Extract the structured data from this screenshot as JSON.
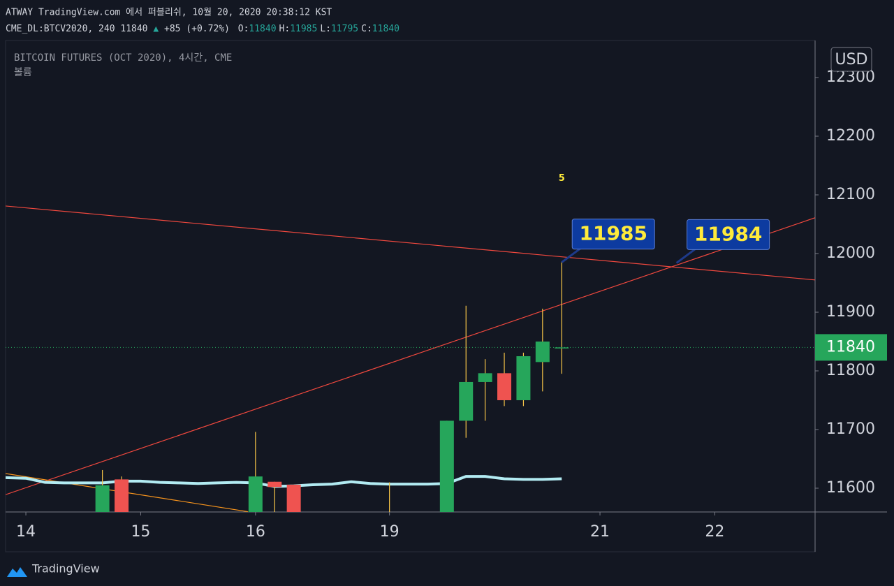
{
  "header": {
    "published": "ATWAY TradingView.com 에서 퍼블리쉬, 10월 20, 2020 20:38:12 KST",
    "symbol": "CME_DL:BTCV2020, 240",
    "last": "11840",
    "change": "+85 (+0.72%)",
    "ohlc": [
      {
        "label": "O:",
        "value": "11840"
      },
      {
        "label": "H:",
        "value": "11985"
      },
      {
        "label": "L:",
        "value": "11795"
      },
      {
        "label": "C:",
        "value": "11840"
      }
    ]
  },
  "chart_data": {
    "type": "candlestick",
    "title": "BITCOIN FUTURES (OCT 2020), 4시간, CME",
    "subtitle": "볼륨",
    "currency": "USD",
    "x": [
      4,
      5,
      12,
      13,
      14,
      19,
      22,
      23,
      24,
      25,
      26,
      27,
      28
    ],
    "open": [
      11550,
      11615,
      11550,
      11611,
      11606,
      11555,
      11550,
      11715,
      11781,
      11796,
      11750,
      11815,
      11840
    ],
    "high": [
      11631,
      11620,
      11696,
      11611,
      11606,
      11610,
      11715,
      11911,
      11820,
      11831,
      11831,
      11906,
      11985
    ],
    "low": [
      11540,
      11540,
      11540,
      11550,
      11540,
      11540,
      11540,
      11686,
      11715,
      11740,
      11740,
      11765,
      11795
    ],
    "close": [
      11605,
      11545,
      11620,
      11602,
      11540,
      11550,
      11715,
      11781,
      11796,
      11750,
      11825,
      11850,
      11840
    ],
    "up_color": "#26a65b",
    "down_color": "#ef5350",
    "wick_color": "#f7c548",
    "overlay": {
      "color": "#b2ebf2",
      "x": [
        -1.06,
        0,
        1,
        2,
        3,
        4,
        5,
        6,
        7,
        8,
        9,
        10,
        11,
        12,
        13,
        14,
        15,
        16,
        17,
        18,
        19,
        20,
        21,
        22,
        23,
        24,
        25,
        26,
        27,
        28
      ],
      "values": [
        11618,
        11617,
        11610,
        11609,
        11609,
        11609,
        11612,
        11612,
        11610,
        11609,
        11608,
        11609,
        11610,
        11609,
        11603,
        11604,
        11606,
        11607,
        11611,
        11608,
        11607,
        11607,
        11607,
        11608,
        11620,
        11620,
        11616,
        11615,
        11615,
        11616
      ]
    },
    "trendlines": [
      {
        "color": "#f0483e",
        "x": [
          -1.06,
          41.24
        ],
        "y": [
          12081,
          11955
        ]
      },
      {
        "color": "#f0483e",
        "x": [
          -1.06,
          41.24
        ],
        "y": [
          11589,
          12061
        ]
      },
      {
        "color": "#f7941d",
        "x": [
          -1.06,
          11.6
        ],
        "y": [
          11625,
          11560
        ]
      }
    ],
    "annotations": [
      {
        "text": "5",
        "x": 28,
        "y": 12128
      },
      {
        "text": "11985",
        "x": 28,
        "y": 11985,
        "callout": true
      },
      {
        "text": "11984",
        "x": 34,
        "y": 11984,
        "callout": true
      }
    ],
    "last_price": 11840,
    "last_price_label": "11840",
    "xlim": [
      -1.06,
      41.24
    ],
    "ylim": [
      11559.5,
      12363.1
    ],
    "xticks": [
      {
        "value": 0,
        "label": "14"
      },
      {
        "value": 6,
        "label": "15"
      },
      {
        "value": 12,
        "label": "16"
      },
      {
        "value": 19,
        "label": "19"
      },
      {
        "value": 30,
        "label": "21"
      },
      {
        "value": 36,
        "label": "22"
      }
    ],
    "yticks": [
      11600,
      11700,
      11800,
      11900,
      12000,
      12100,
      12200,
      12300
    ]
  },
  "footer": {
    "brand": "TradingView"
  }
}
